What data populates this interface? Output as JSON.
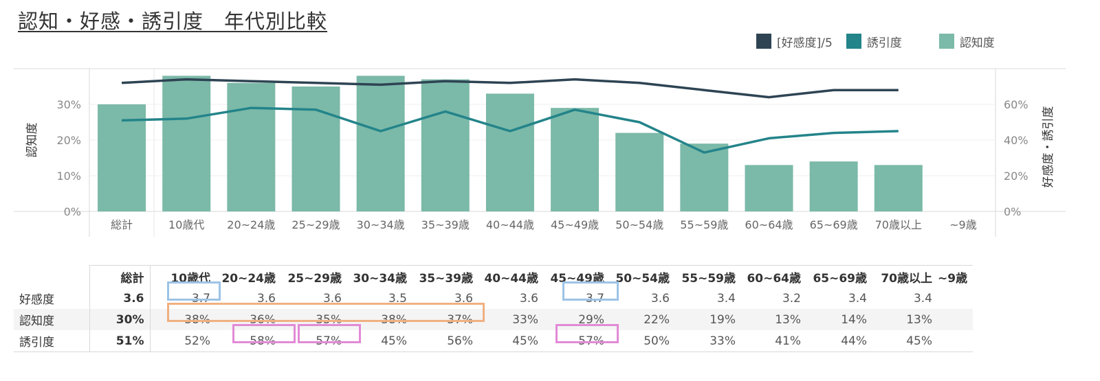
{
  "title": "認知・好感・誘引度　年代別比較",
  "legend": [
    {
      "label": "[好感度]/5",
      "color": "#2e4453"
    },
    {
      "label": "誘引度",
      "color": "#23848a"
    },
    {
      "label": "認知度",
      "color": "#7bb9a8"
    }
  ],
  "chart_data": {
    "type": "bar",
    "categories": [
      "総計",
      "10歳代",
      "20~24歳",
      "25~29歳",
      "30~34歳",
      "35~39歳",
      "40~44歳",
      "45~49歳",
      "50~54歳",
      "55~59歳",
      "60~64歳",
      "65~69歳",
      "70歳以上",
      "~9歳"
    ],
    "series": [
      {
        "name": "認知度",
        "type": "bar",
        "axis": "left",
        "color": "#7bb9a8",
        "values": [
          30,
          38,
          36,
          35,
          38,
          37,
          33,
          29,
          22,
          19,
          13,
          14,
          13,
          null
        ]
      },
      {
        "name": "誘引度",
        "type": "line",
        "axis": "right",
        "color": "#23848a",
        "values": [
          51,
          52,
          58,
          57,
          45,
          56,
          45,
          57,
          50,
          33,
          41,
          44,
          45,
          null
        ]
      },
      {
        "name": "[好感度]/5",
        "type": "line",
        "axis": "right",
        "color": "#2e4453",
        "values": [
          72,
          74,
          73,
          72,
          71,
          73,
          72,
          74,
          72,
          68,
          64,
          68,
          68,
          null
        ]
      }
    ],
    "ylabel": "認知度",
    "ylabel_right": "好感度・誘引度",
    "yticks_left": [
      "0%",
      "10%",
      "20%",
      "30%"
    ],
    "yticks_right": [
      "0%",
      "20%",
      "40%",
      "60%"
    ],
    "ylim": [
      0,
      40
    ],
    "ylim_right": [
      0,
      80
    ],
    "legend_position": "top-right",
    "grid": true
  },
  "table": {
    "headers": [
      "総計",
      "10歳代",
      "20~24歳",
      "25~29歳",
      "30~34歳",
      "35~39歳",
      "40~44歳",
      "45~49歳",
      "50~54歳",
      "55~59歳",
      "60~64歳",
      "65~69歳",
      "70歳以上",
      "~9歳"
    ],
    "rows": [
      {
        "label": "好感度",
        "values": [
          "3.6",
          "3.7",
          "3.6",
          "3.6",
          "3.5",
          "3.6",
          "3.6",
          "3.7",
          "3.6",
          "3.4",
          "3.2",
          "3.4",
          "3.4",
          ""
        ]
      },
      {
        "label": "認知度",
        "values": [
          "30%",
          "38%",
          "36%",
          "35%",
          "38%",
          "37%",
          "33%",
          "29%",
          "22%",
          "19%",
          "13%",
          "14%",
          "13%",
          ""
        ]
      },
      {
        "label": "誘引度",
        "values": [
          "51%",
          "52%",
          "58%",
          "57%",
          "45%",
          "56%",
          "45%",
          "57%",
          "50%",
          "33%",
          "41%",
          "44%",
          "45%",
          ""
        ]
      }
    ]
  },
  "highlights": {
    "blue": "#9cc3e6",
    "orange": "#f0b080",
    "pink": "#e28ad6"
  }
}
